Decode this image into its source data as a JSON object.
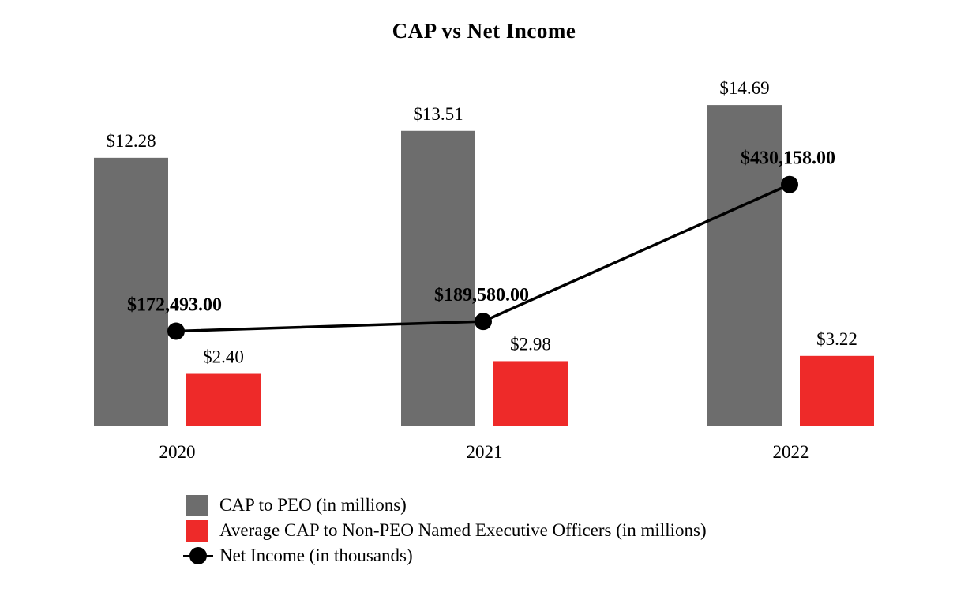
{
  "chart_data": {
    "type": "bar",
    "title": "CAP vs Net Income",
    "categories": [
      "2020",
      "2021",
      "2022"
    ],
    "series": [
      {
        "name": "CAP to PEO (in millions)",
        "type": "bar",
        "color": "#6d6d6d",
        "values": [
          12.28,
          13.51,
          14.69
        ],
        "labels": [
          "$12.28",
          "$13.51",
          "$14.69"
        ]
      },
      {
        "name": "Average CAP to Non-PEO Named Executive Officers (in millions)",
        "type": "bar",
        "color": "#ee2a29",
        "values": [
          2.4,
          2.98,
          3.22
        ],
        "labels": [
          "$2.40",
          "$2.98",
          "$3.22"
        ]
      },
      {
        "name": "Net Income (in thousands)",
        "type": "line",
        "color": "#000000",
        "values": [
          172493.0,
          189580.0,
          430158.0
        ],
        "labels": [
          "$172,493.00",
          "$189,580.00",
          "$430,158.00"
        ]
      }
    ],
    "legend_position": "bottom",
    "grid": false
  }
}
